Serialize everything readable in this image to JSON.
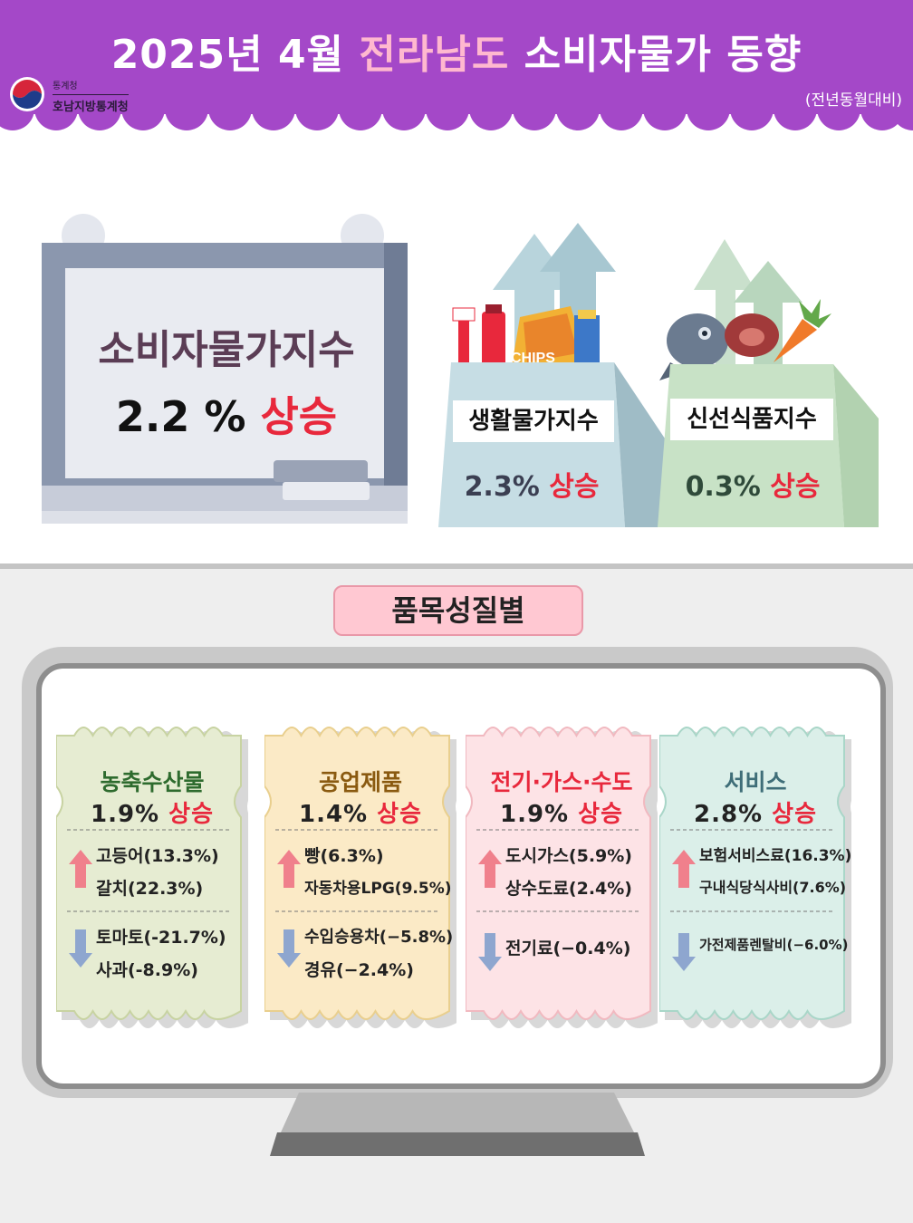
{
  "header": {
    "title_pre": "2025년 4월 ",
    "title_highlight": "전라남도",
    "title_post": " 소비자물가 동향",
    "subtitle": "(전년동월대비)",
    "logo_small": "통계청",
    "logo_name": "호남지방통계청"
  },
  "cpi": {
    "label": "소비자물가지수",
    "value": "2.2 %",
    "direction": "상승"
  },
  "living_index": {
    "label": "생활물가지수",
    "value": "2.3%",
    "direction": "상승",
    "bag_text": "CHIPS"
  },
  "fresh_food_index": {
    "label": "신선식품지수",
    "value": "0.3%",
    "direction": "상승"
  },
  "category_title": "품목성질별",
  "categories": [
    {
      "name": "농축수산물",
      "rate": "1.9%",
      "direction": "상승",
      "up_items": [
        "고등어(13.3%)",
        "갈치(22.3%)"
      ],
      "down_items": [
        "토마토(-21.7%)",
        "사과(-8.9%)"
      ]
    },
    {
      "name": "공업제품",
      "rate": "1.4%",
      "direction": "상승",
      "up_items": [
        "빵(6.3%)",
        "자동차용LPG(9.5%)"
      ],
      "down_items": [
        "수입승용차(−5.8%)",
        "경유(−2.4%)"
      ]
    },
    {
      "name": "전기·가스·수도",
      "rate": "1.9%",
      "direction": "상승",
      "up_items": [
        "도시가스(5.9%)",
        "상수도료(2.4%)"
      ],
      "down_items": [
        "전기료(−0.4%)"
      ]
    },
    {
      "name": "서비스",
      "rate": "2.8%",
      "direction": "상승",
      "up_items": [
        "보험서비스료(16.3%)",
        "구내식당식사비(7.6%)"
      ],
      "down_items": [
        "가전제품렌탈비(−6.0%)"
      ]
    }
  ],
  "colors": {
    "banner": "#a448c8",
    "highlight": "#ffb8cf",
    "rise": "#e8283c",
    "ticket1": "#e6ecd2",
    "ticket2": "#fbeac6",
    "ticket3": "#fde3e6",
    "ticket4": "#dbefe9"
  },
  "icons": [
    "government-logo-icon",
    "up-arrow-icon",
    "down-arrow-icon",
    "toothbrush-icon",
    "fish-icon",
    "carrot-icon"
  ]
}
